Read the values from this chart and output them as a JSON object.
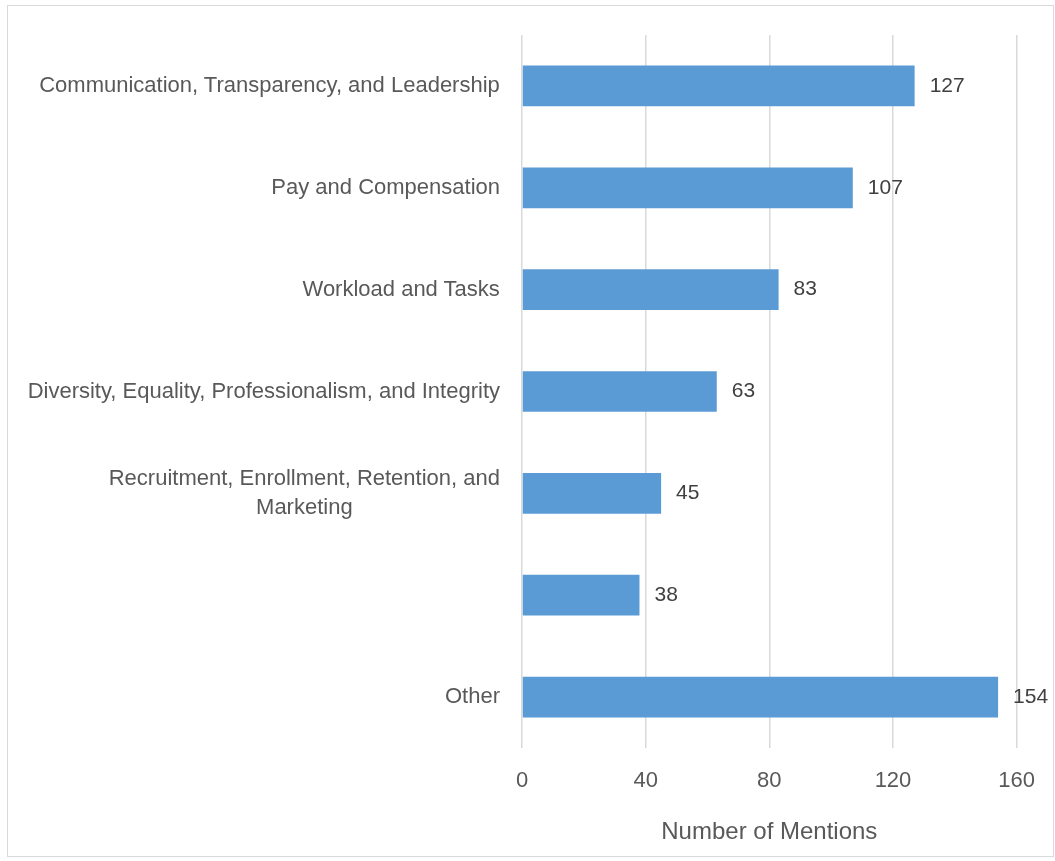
{
  "chart_data": {
    "type": "bar",
    "orientation": "horizontal",
    "categories": [
      "Communication, Transparency, and Leadership",
      "Pay and Compensation",
      "Workload and Tasks",
      "Diversity, Equality, Professionalism, and Integrity",
      "Recruitment, Enrollment, Retention, and Marketing",
      null,
      "Other"
    ],
    "values": [
      127,
      107,
      83,
      63,
      45,
      38,
      154
    ],
    "color": "#5b9bd5",
    "xlabel": "Number of Mentions",
    "xlim": [
      0,
      160
    ],
    "xticks": [
      0,
      40,
      80,
      120,
      160
    ],
    "grid": "x",
    "data_labels": true
  }
}
